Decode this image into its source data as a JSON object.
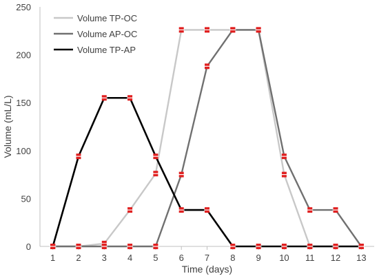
{
  "chart_data": {
    "type": "line",
    "xlabel": "Time (days)",
    "ylabel": "Volume (mL/L)",
    "x": [
      1,
      2,
      3,
      4,
      5,
      6,
      7,
      8,
      9,
      10,
      11,
      12,
      13
    ],
    "xlim": [
      1,
      13
    ],
    "ylim": [
      0,
      250
    ],
    "yticks": [
      0,
      50,
      100,
      150,
      200,
      250
    ],
    "grid": false,
    "legend_position": "top-left",
    "series": [
      {
        "name": "Volume TP-OC",
        "color": "#c8c8c8",
        "values": [
          0,
          0,
          3,
          38,
          76,
          226,
          226,
          226,
          226,
          75,
          0,
          0,
          0
        ]
      },
      {
        "name": "Volume AP-OC",
        "color": "#707070",
        "values": [
          0,
          0,
          0,
          0,
          0,
          75,
          188,
          226,
          226,
          94,
          38,
          38,
          0
        ]
      },
      {
        "name": "Volume TP-AP",
        "color": "#000000",
        "values": [
          0,
          94,
          155,
          155,
          94,
          38,
          38,
          0,
          0,
          0,
          0,
          0,
          0
        ]
      }
    ],
    "marker_color": "#e02020"
  }
}
